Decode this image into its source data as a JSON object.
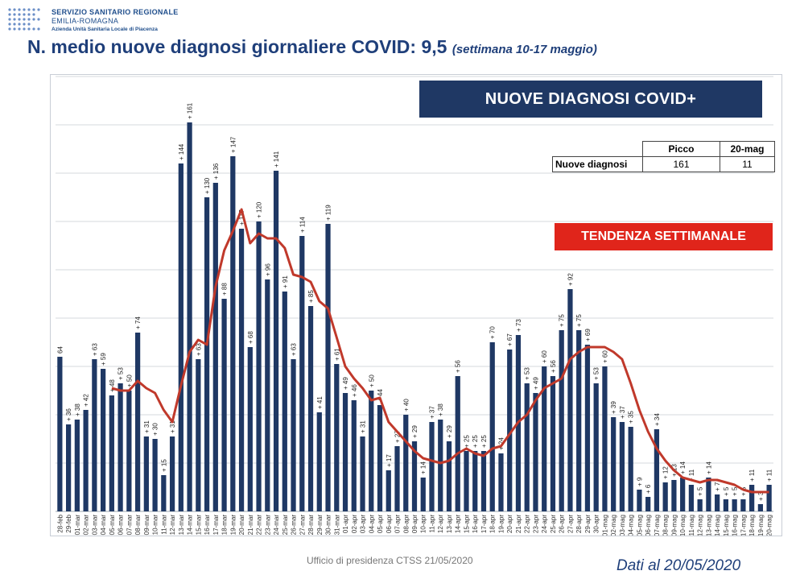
{
  "logo": {
    "line1": "SERVIZIO SANITARIO REGIONALE",
    "line2": "EMILIA-ROMAGNA",
    "line3": "Azienda Unità Sanitaria Locale di Piacenza"
  },
  "title": {
    "main": "N. medio nuove diagnosi giornaliere COVID: 9,5",
    "sub": "(settimana 10-17 maggio)"
  },
  "banner": "NUOVE DIAGNOSI COVID+",
  "trend_banner": "TENDENZA SETTIMANALE",
  "peak_table": {
    "col1": "Picco",
    "col2": "20-mag",
    "row_label": "Nuove diagnosi",
    "peak": "161",
    "latest": "11"
  },
  "footer": {
    "office": "Ufficio di presidenza CTSS 21/05/2020",
    "date": "Dati al 20/05/2020"
  },
  "colors": {
    "bar": "#1f3864",
    "trend_line": "#c0392b",
    "banner": "#1f3864",
    "trend_banner": "#e0251b",
    "title": "#1f3f7a"
  },
  "chart_data": {
    "type": "bar",
    "ylim": [
      0,
      180
    ],
    "grid": "horizontal",
    "categories": [
      "28-feb",
      "29-feb",
      "01-mar",
      "02-mar",
      "03-mar",
      "04-mar",
      "05-mar",
      "06-mar",
      "07-mar",
      "08-mar",
      "09-mar",
      "10-mar",
      "11-mar",
      "12-mar",
      "13-mar",
      "14-mar",
      "15-mar",
      "16-mar",
      "17-mar",
      "18-mar",
      "19-mar",
      "20-mar",
      "21-mar",
      "22-mar",
      "23-mar",
      "24-mar",
      "25-mar",
      "26-mar",
      "27-mar",
      "28-mar",
      "29-mar",
      "30-mar",
      "31-mar",
      "01-apr",
      "02-apr",
      "03-apr",
      "04-apr",
      "05-apr",
      "06-apr",
      "07-apr",
      "08-apr",
      "09-apr",
      "10-apr",
      "11-apr",
      "12-apr",
      "13-apr",
      "14-apr",
      "15-apr",
      "16-apr",
      "17-apr",
      "18-apr",
      "19-apr",
      "20-apr",
      "21-apr",
      "22-apr",
      "23-apr",
      "24-apr",
      "25-apr",
      "26-apr",
      "27-apr",
      "28-apr",
      "29-apr",
      "30-apr",
      "01-mag",
      "02-mag",
      "03-mag",
      "04-mag",
      "05-mag",
      "06-mag",
      "07-mag",
      "08-mag",
      "09-mag",
      "10-mag",
      "11-mag",
      "12-mag",
      "13-mag",
      "14-mag",
      "15-mag",
      "16-mag",
      "17-mag",
      "18-mag",
      "19-mag",
      "20-mag"
    ],
    "values": [
      64,
      36,
      38,
      42,
      63,
      59,
      48,
      53,
      50,
      74,
      31,
      30,
      15,
      31,
      144,
      161,
      63,
      130,
      136,
      88,
      147,
      117,
      68,
      120,
      96,
      141,
      91,
      63,
      114,
      85,
      41,
      119,
      61,
      49,
      46,
      31,
      50,
      44,
      17,
      27,
      40,
      29,
      14,
      37,
      38,
      29,
      56,
      25,
      25,
      25,
      70,
      24,
      67,
      73,
      53,
      49,
      60,
      56,
      75,
      92,
      75,
      69,
      53,
      60,
      39,
      37,
      35,
      9,
      6,
      34,
      12,
      13,
      14,
      11,
      5,
      14,
      7,
      5,
      5,
      5,
      11,
      3,
      11
    ],
    "labels": [
      "64",
      "+ 36",
      "+ 38",
      "+ 42",
      "+ 63",
      "+ 59",
      "+ 48",
      "+ 53",
      "+ 50",
      "+ 74",
      "+ 31",
      "+ 30",
      "+ 15",
      "+ 31",
      "+ 144",
      "+ 161",
      "+ 63",
      "+ 130",
      "+ 136",
      "+ 88",
      "+ 147",
      "+ 117",
      "+ 68",
      "+ 120",
      "+ 96",
      "+ 141",
      "+ 91",
      "+ 63",
      "+ 114",
      "+ 85",
      "+ 41",
      "+ 119",
      "+ 61",
      "+ 49",
      "+ 46",
      "+ 31",
      "+ 50",
      "+ 44",
      "+ 17",
      "+ 27",
      "+ 40",
      "+ 29",
      "+ 14",
      "+ 37",
      "+ 38",
      "+ 29",
      "+ 56",
      "+ 25",
      "+ 25",
      "+ 25",
      "+ 70",
      "+ 24",
      "+ 67",
      "+ 73",
      "+ 53",
      "+ 49",
      "+ 60",
      "+ 56",
      "+ 75",
      "+ 92",
      "+ 75",
      "+ 69",
      "+ 53",
      "+ 60",
      "+ 39",
      "+ 37",
      "+ 35",
      "+ 9",
      "+ 6",
      "+ 34",
      "+ 12",
      "+ 13",
      "+ 14",
      "+ 11",
      "+ 5",
      "+ 14",
      "+ 7",
      "+ 5",
      "+ 5",
      "+ 5",
      "+ 11",
      "+ 3",
      "+ 11"
    ],
    "trend": [
      null,
      null,
      null,
      null,
      null,
      null,
      51,
      50,
      50,
      54,
      51,
      49,
      42,
      37,
      52,
      66,
      71,
      69,
      93,
      108,
      116,
      125,
      111,
      115,
      113,
      113,
      109,
      98,
      97,
      95,
      87,
      84,
      72,
      60,
      55,
      51,
      46,
      47,
      37,
      33,
      29,
      25,
      22,
      21,
      20,
      21,
      24,
      26,
      24,
      23,
      26,
      27,
      32,
      37,
      40,
      46,
      51,
      53,
      55,
      63,
      66,
      68,
      68,
      68,
      66,
      63,
      53,
      42,
      33,
      26,
      21,
      17,
      14,
      13,
      12,
      13,
      13,
      12,
      11,
      9,
      8,
      8,
      8
    ]
  }
}
